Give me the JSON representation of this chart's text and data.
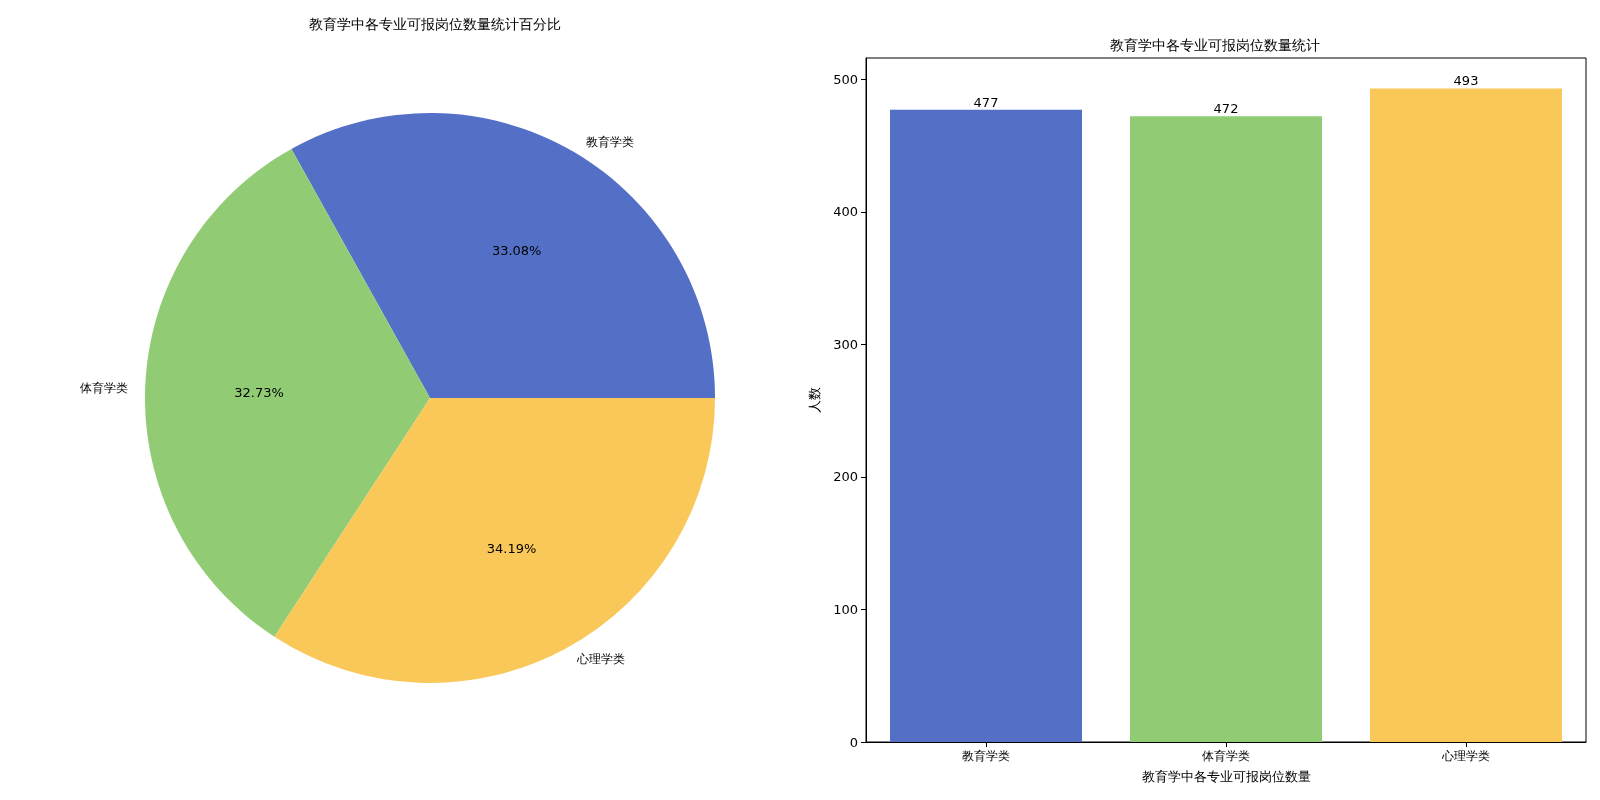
{
  "chart_data": [
    {
      "type": "pie",
      "title": "教育学中各专业可报岗位数量统计百分比",
      "categories": [
        "教育学类",
        "体育学类",
        "心理学类"
      ],
      "values": [
        33.08,
        32.73,
        34.19
      ],
      "value_labels": [
        "33.08%",
        "32.73%",
        "34.19%"
      ],
      "colors": [
        "#5470c6",
        "#91cc75",
        "#fac858"
      ],
      "legend": false
    },
    {
      "type": "bar",
      "title": "教育学中各专业可报岗位数量统计",
      "categories": [
        "教育学类",
        "体育学类",
        "心理学类"
      ],
      "values": [
        477,
        472,
        493
      ],
      "colors": [
        "#5470c6",
        "#91cc75",
        "#fac858"
      ],
      "xlabel": "教育学中各专业可报岗位数量",
      "ylabel": "人数",
      "ylim": [
        0,
        516
      ],
      "yticks": [
        0,
        100,
        200,
        300,
        400,
        500
      ],
      "data_labels": true,
      "grid": false,
      "legend": false
    }
  ]
}
